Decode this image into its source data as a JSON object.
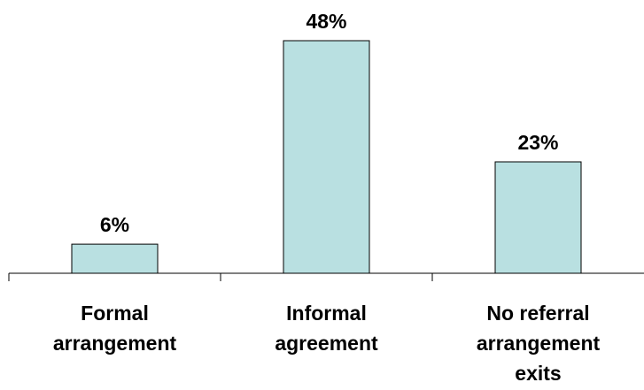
{
  "chart_data": {
    "type": "bar",
    "categories": [
      [
        "Formal",
        "arrangement"
      ],
      [
        "Informal",
        "agreement"
      ],
      [
        "No referral",
        "arrangement",
        "exits"
      ]
    ],
    "values": [
      6,
      48,
      23
    ],
    "data_labels": [
      "6%",
      "48%",
      "23%"
    ],
    "title": "",
    "xlabel": "",
    "ylabel": "",
    "ylim": [
      0,
      48
    ],
    "grid": false,
    "legend": "none",
    "colors": {
      "bar_fill": "#b9e0e1",
      "bar_stroke": "#000000",
      "axis": "#000000"
    }
  }
}
